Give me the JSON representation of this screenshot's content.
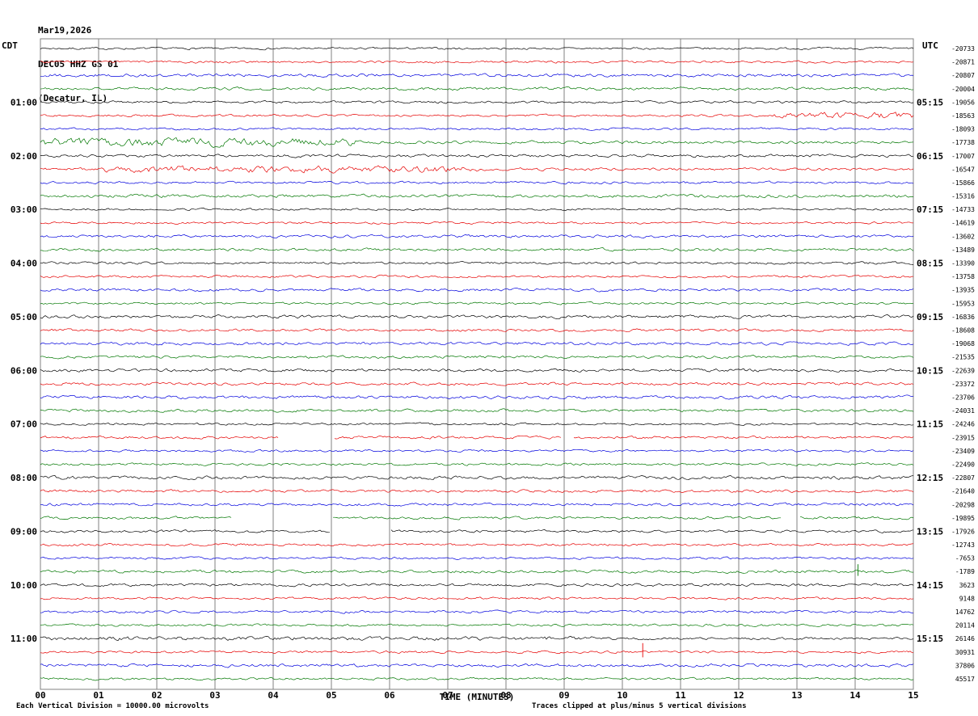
{
  "header": {
    "date": "Mar19,2026",
    "station": "DEC05 HHZ GS 01",
    "location": "(Decatur, IL)",
    "left_tz": "CDT",
    "right_tz": "UTC"
  },
  "footer": {
    "xlabel": "TIME (MINUTES)",
    "scale_note": "Each Vertical Division = 10000.00 microvolts",
    "clip_note": "Traces clipped at plus/minus 5 vertical divisions"
  },
  "colors": {
    "grid": "#808080",
    "trace_black": "#000000",
    "trace_red": "#e60000",
    "trace_blue": "#0000dd",
    "trace_green": "#007700"
  },
  "chart_data": {
    "type": "line",
    "subtype": "helicorder-seismogram",
    "title": "DEC05 HHZ GS 01 (Decatur, IL) Mar19,2026",
    "xlabel": "TIME (MINUTES)",
    "x_range_minutes": [
      0,
      15
    ],
    "x_tick_labels": [
      "00",
      "01",
      "02",
      "03",
      "04",
      "05",
      "06",
      "07",
      "08",
      "09",
      "10",
      "11",
      "12",
      "13",
      "14",
      "15"
    ],
    "rows": 48,
    "row_duration_minutes": 15,
    "first_row_time_cdt": "00:00",
    "microvolts_per_division": "10000.00",
    "clip_divisions": 5,
    "trace_color_cycle": [
      "#000000",
      "#e60000",
      "#0000dd",
      "#007700"
    ],
    "left_label_rows": [
      4,
      8,
      12,
      16,
      20,
      24,
      28,
      32,
      36,
      40,
      44
    ],
    "left_time_labels": [
      "01:00",
      "02:00",
      "03:00",
      "04:00",
      "05:00",
      "06:00",
      "07:00",
      "08:00",
      "09:00",
      "10:00",
      "11:00"
    ],
    "right_time_labels": [
      "05:15",
      "06:15",
      "07:15",
      "08:15",
      "09:15",
      "10:15",
      "11:15",
      "12:15",
      "13:15",
      "14:15",
      "15:15"
    ],
    "right_amplitude_values": [
      -20733,
      -20871,
      -20807,
      -20004,
      -19056,
      -18563,
      -18093,
      -17738,
      -17007,
      -16547,
      -15866,
      -15316,
      -14733,
      -14619,
      -13602,
      -13489,
      -13390,
      -13758,
      -13935,
      -15953,
      -16836,
      -18608,
      -19068,
      -21535,
      -22639,
      -23372,
      -23706,
      -24031,
      -24246,
      -23915,
      -23409,
      -22490,
      -22807,
      -21640,
      -20298,
      -19895,
      -17926,
      -12743,
      -7653,
      -1789,
      3623,
      9148,
      14762,
      20114,
      26146,
      30931,
      37806,
      45517
    ],
    "events": [
      {
        "row": 5,
        "type": "burst",
        "start": 12.6,
        "end": 15,
        "mult": 3.0
      },
      {
        "row": 7,
        "type": "burst",
        "start": 0,
        "end": 5.5,
        "mult": 2.6
      },
      {
        "row": 9,
        "type": "burst",
        "start": 1.0,
        "end": 7.5,
        "mult": 2.4
      },
      {
        "row": 44,
        "type": "burst",
        "start": 0,
        "end": 9.5,
        "mult": 1.6
      },
      {
        "row": 29,
        "type": "gap",
        "start": 4.1,
        "end": 5.05
      },
      {
        "row": 29,
        "type": "gap",
        "start": 8.95,
        "end": 9.15
      },
      {
        "row": 35,
        "type": "gap",
        "start": 3.3,
        "end": 5.0
      },
      {
        "row": 35,
        "type": "gap",
        "start": 12.75,
        "end": 13.05
      },
      {
        "row": 36,
        "type": "gap",
        "start": 5.0,
        "end": 6.0
      },
      {
        "row": 39,
        "type": "spike",
        "at": 14.05,
        "height": 9
      },
      {
        "row": 45,
        "type": "spike",
        "at": 10.35,
        "height": 11
      }
    ]
  }
}
